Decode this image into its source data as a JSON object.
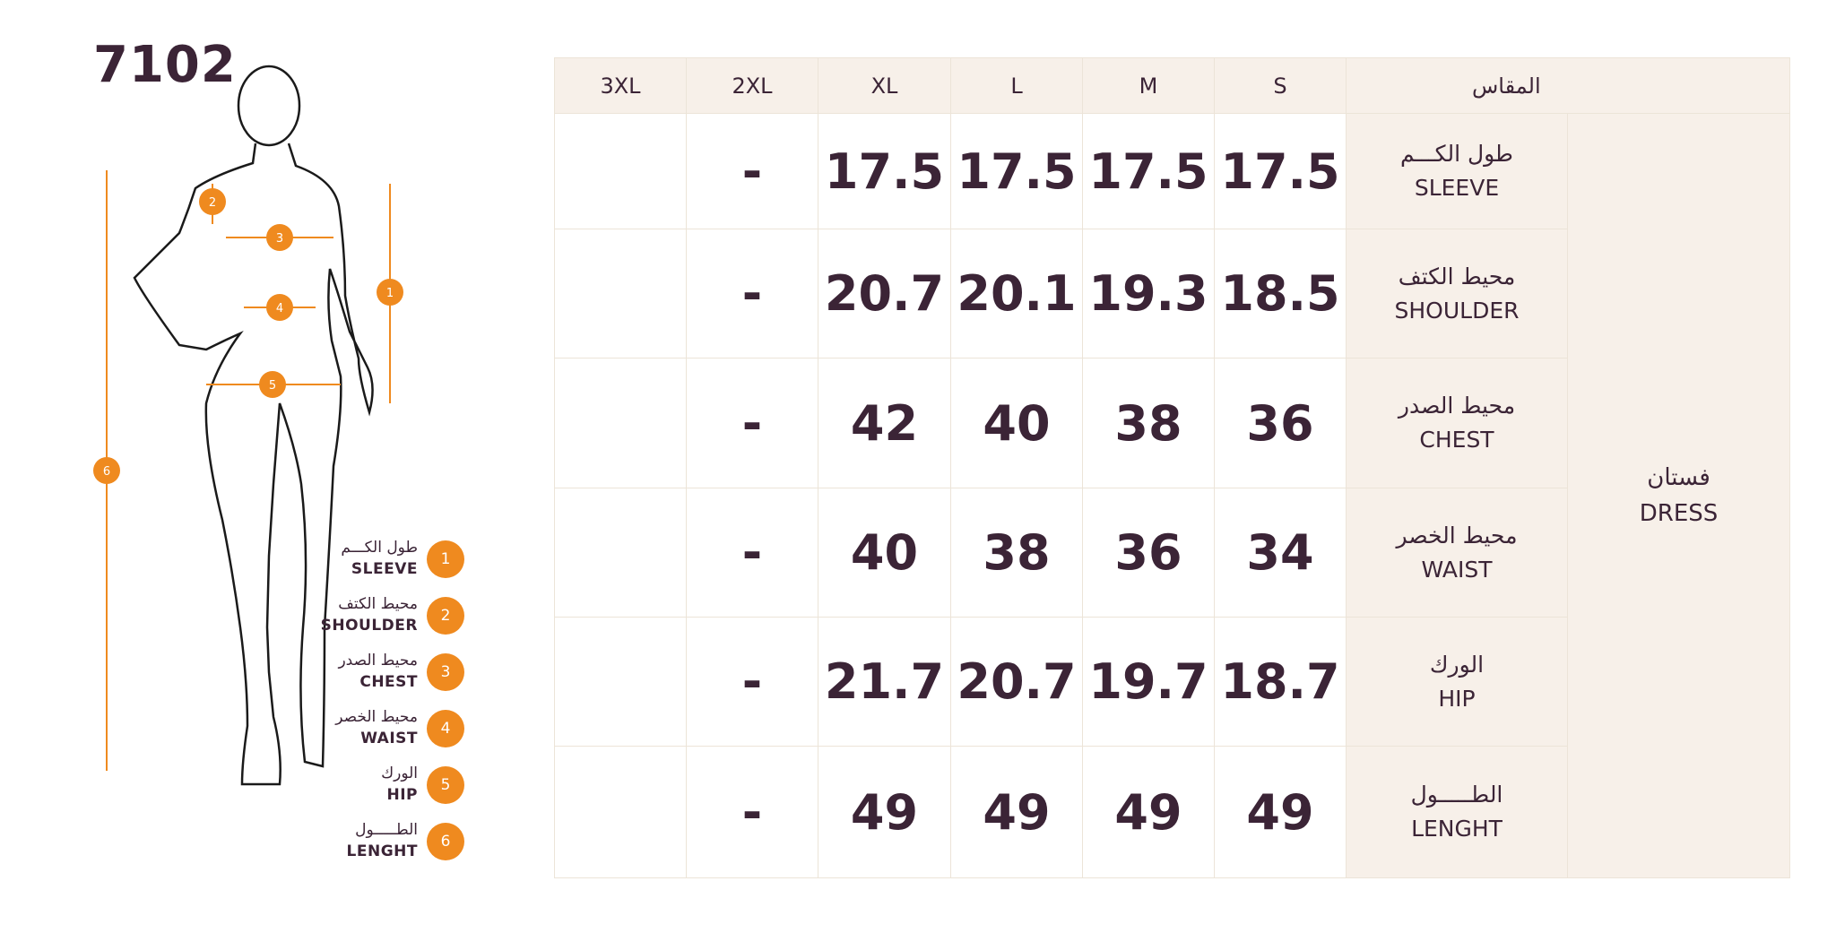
{
  "model_number": "7102",
  "colors": {
    "accent": "#ef8a1f",
    "text": "#3b2436",
    "header_bg": "#f7f0e9"
  },
  "legend": [
    {
      "num": "1",
      "ar": "طول الكـــم",
      "en": "SLEEVE"
    },
    {
      "num": "2",
      "ar": "محيط الكتف",
      "en": "SHOULDER"
    },
    {
      "num": "3",
      "ar": "محيط الصدر",
      "en": "CHEST"
    },
    {
      "num": "4",
      "ar": "محيط الخصر",
      "en": "WAIST"
    },
    {
      "num": "5",
      "ar": "الورك",
      "en": "HIP"
    },
    {
      "num": "6",
      "ar": "الطـــــول",
      "en": "LENGHT"
    }
  ],
  "table": {
    "headers": [
      "3XL",
      "2XL",
      "XL",
      "L",
      "M",
      "S",
      "المقاس"
    ],
    "category": {
      "ar": "فستان",
      "en": "DRESS"
    },
    "rows": [
      {
        "ar": "طول الكـــم",
        "en": "SLEEVE",
        "values": [
          "",
          "-",
          "17.5",
          "17.5",
          "17.5",
          "17.5"
        ]
      },
      {
        "ar": "محيط الكتف",
        "en": "SHOULDER",
        "values": [
          "",
          "-",
          "20.7",
          "20.1",
          "19.3",
          "18.5"
        ]
      },
      {
        "ar": "محيط الصدر",
        "en": "CHEST",
        "values": [
          "",
          "-",
          "42",
          "40",
          "38",
          "36"
        ]
      },
      {
        "ar": "محيط الخصر",
        "en": "WAIST",
        "values": [
          "",
          "-",
          "40",
          "38",
          "36",
          "34"
        ]
      },
      {
        "ar": "الورك",
        "en": "HIP",
        "values": [
          "",
          "-",
          "21.7",
          "20.7",
          "19.7",
          "18.7"
        ]
      },
      {
        "ar": "الطـــــول",
        "en": "LENGHT",
        "values": [
          "",
          "-",
          "49",
          "49",
          "49",
          "49"
        ]
      }
    ]
  }
}
